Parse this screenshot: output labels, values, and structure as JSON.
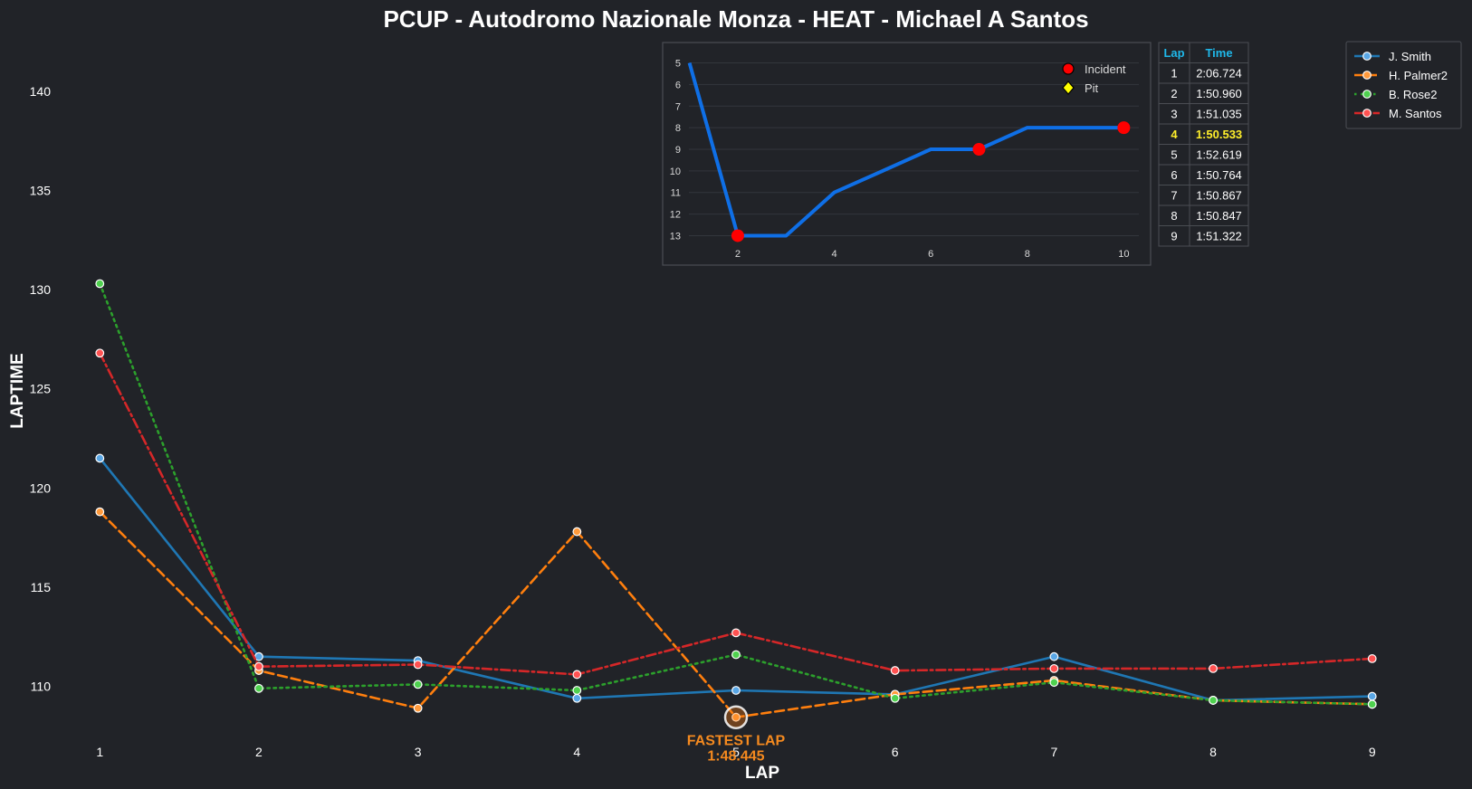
{
  "chart_data": [
    {
      "type": "line",
      "title": "PCUP - Autodromo Nazionale Monza - HEAT - Michael A Santos",
      "xlabel": "LAP",
      "ylabel": "LAPTIME",
      "x": [
        1,
        2,
        3,
        4,
        5,
        6,
        7,
        8,
        9
      ],
      "xlim": [
        0.6,
        9.4
      ],
      "ylim": [
        107.2,
        143.0
      ],
      "yticks": [
        110,
        115,
        120,
        125,
        130,
        135,
        140
      ],
      "grid": false,
      "legend_position": "top-right",
      "series": [
        {
          "name": "J. Smith",
          "color": "#1f77b4",
          "marker_fill": "#5aa7e6",
          "dash": "solid",
          "values": [
            121.5,
            111.5,
            111.3,
            109.4,
            109.8,
            109.6,
            111.5,
            109.3,
            109.5
          ]
        },
        {
          "name": "H. Palmer2",
          "color": "#ff7f0e",
          "marker_fill": "#ff9a3c",
          "dash": "dashed",
          "values": [
            118.8,
            110.8,
            108.9,
            117.8,
            108.445,
            109.6,
            110.3,
            109.3,
            109.1
          ]
        },
        {
          "name": "B. Rose2",
          "color": "#2ca02c",
          "marker_fill": "#4fd14f",
          "dash": "dotted",
          "values": [
            130.3,
            109.9,
            110.1,
            109.8,
            111.6,
            109.4,
            110.2,
            109.3,
            109.1
          ]
        },
        {
          "name": "M. Santos",
          "color": "#d62728",
          "marker_fill": "#ff5252",
          "dash": "dashdot",
          "values": [
            126.8,
            111.0,
            111.1,
            110.6,
            112.7,
            110.8,
            110.9,
            110.9,
            111.4
          ]
        }
      ],
      "annotation": {
        "label": "FASTEST LAP",
        "value": "1:48.445",
        "x": 5,
        "y": 108.445
      }
    },
    {
      "type": "line",
      "title": "",
      "x": [
        1,
        2,
        3,
        4,
        5,
        6,
        7,
        8,
        9,
        10
      ],
      "values": [
        5,
        13,
        13,
        11,
        10,
        9,
        9,
        8,
        8,
        8
      ],
      "xlim": [
        0.5,
        10.5
      ],
      "ylim": [
        13.4,
        4.6
      ],
      "xticks": [
        2,
        4,
        6,
        8,
        10
      ],
      "yticks": [
        5,
        6,
        7,
        8,
        9,
        10,
        11,
        12,
        13
      ],
      "color": "#0f6fe6",
      "incidents": [
        2,
        7,
        10
      ],
      "pits": [],
      "legend": [
        {
          "label": "Incident",
          "color": "#ff0000",
          "marker": "circle"
        },
        {
          "label": "Pit",
          "color": "#ffff00",
          "marker": "diamond"
        }
      ],
      "grid": true,
      "legend_position": "top-right"
    },
    {
      "type": "table",
      "columns": [
        "Lap",
        "Time"
      ],
      "rows": [
        [
          "1",
          "2:06.724"
        ],
        [
          "2",
          "1:50.960"
        ],
        [
          "3",
          "1:51.035"
        ],
        [
          "4",
          "1:50.533"
        ],
        [
          "5",
          "1:52.619"
        ],
        [
          "6",
          "1:50.764"
        ],
        [
          "7",
          "1:50.867"
        ],
        [
          "8",
          "1:50.847"
        ],
        [
          "9",
          "1:51.322"
        ]
      ],
      "highlight_row": 3,
      "highlight_color": "#ffef2b",
      "header_color": "#1fb8ea"
    }
  ]
}
